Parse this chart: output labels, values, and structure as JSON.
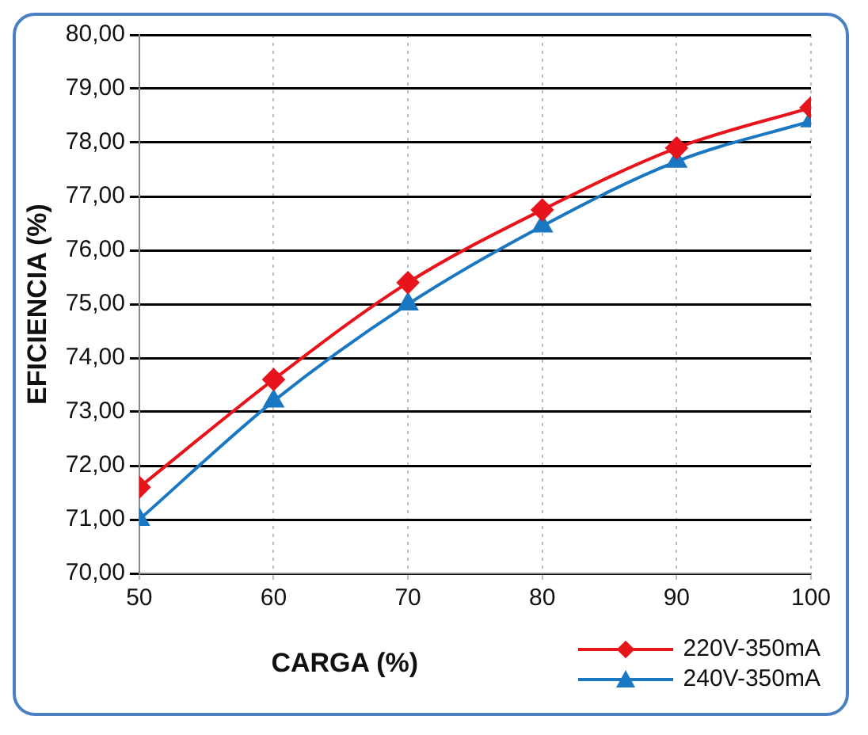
{
  "chart_data": {
    "type": "line",
    "xlabel": "CARGA (%)",
    "ylabel": "EFICIENCIA (%)",
    "x": [
      50,
      60,
      70,
      80,
      90,
      100
    ],
    "series": [
      {
        "name": "220V-350mA",
        "color": "#e8141c",
        "marker": "diamond",
        "values": [
          71.6,
          73.6,
          75.4,
          76.75,
          77.9,
          78.65
        ]
      },
      {
        "name": "240V-350mA",
        "color": "#1a78c2",
        "marker": "triangle",
        "values": [
          71.0,
          73.2,
          75.0,
          76.45,
          77.65,
          78.4
        ]
      }
    ],
    "xlim": [
      50,
      100
    ],
    "xticks": [
      50,
      60,
      70,
      80,
      90,
      100
    ],
    "ylim": [
      70,
      80
    ],
    "yticks": [
      {
        "value": 70,
        "label": "70,00"
      },
      {
        "value": 71,
        "label": "71,00"
      },
      {
        "value": 72,
        "label": "72,00"
      },
      {
        "value": 73,
        "label": "73,00"
      },
      {
        "value": 74,
        "label": "74,00"
      },
      {
        "value": 75,
        "label": "75,00"
      },
      {
        "value": 76,
        "label": "76,00"
      },
      {
        "value": 77,
        "label": "77,00"
      },
      {
        "value": 78,
        "label": "78,00"
      },
      {
        "value": 79,
        "label": "79,00"
      },
      {
        "value": 80,
        "label": "80,00"
      }
    ],
    "grid": true,
    "legend": "bottom right",
    "line_style": "solid"
  }
}
